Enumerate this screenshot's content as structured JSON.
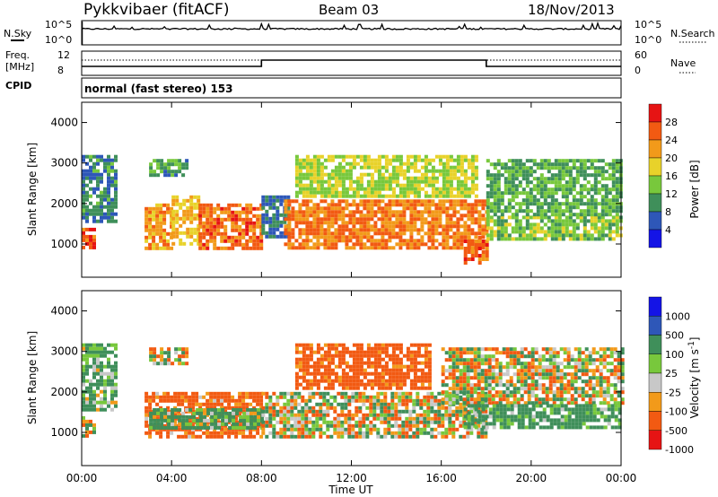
{
  "header": {
    "station": "Pykkvibaer (fitACF)",
    "beam": "Beam 03",
    "date": "18/Nov/2013"
  },
  "noise_panel": {
    "left_label": "N.Sky",
    "right_label": "N.Search",
    "left_ticks": [
      "10^5",
      "10^0"
    ],
    "right_ticks": [
      "10^5",
      "10^0"
    ]
  },
  "freq_panel": {
    "left_label_line1": "Freq.",
    "left_label_line2": "[MHz]",
    "left_ticks": [
      "12",
      "8"
    ],
    "right_label": "Nave",
    "right_ticks": [
      "60",
      "0"
    ],
    "freq_steps": [
      {
        "t_start": 0.0,
        "t_end": 3.0,
        "freq": 10.0
      },
      {
        "t_start": 3.0,
        "t_end": 8.0,
        "freq": 10.0
      },
      {
        "t_start": 8.0,
        "t_end": 18.0,
        "freq": 11.4
      },
      {
        "t_start": 18.0,
        "t_end": 24.0,
        "freq": 10.0
      }
    ]
  },
  "cpid": {
    "label": "CPID",
    "mode": "normal (fast stereo) 153"
  },
  "x_axis": {
    "title": "Time UT",
    "ticks": [
      "00:00",
      "04:00",
      "08:00",
      "12:00",
      "16:00",
      "20:00",
      "00:00"
    ],
    "range_hours": [
      0,
      24
    ]
  },
  "colors": {
    "power": [
      "#1414e6",
      "#2e57b8",
      "#3f8f5a",
      "#78c83c",
      "#e8d22a",
      "#f29a1a",
      "#f25a12",
      "#e61414"
    ],
    "velocity": [
      "#e61414",
      "#f25a12",
      "#f29a1a",
      "#c8c8c8",
      "#78c83c",
      "#3f8f5a",
      "#2e57b8",
      "#1414e6"
    ]
  },
  "chart_data": [
    {
      "type": "heatmap",
      "title": "Power",
      "ylabel": "Slant Range [km]",
      "ylim": [
        180,
        4500
      ],
      "y_ticks": [
        1000,
        2000,
        3000,
        4000
      ],
      "colorbar_label": "Power [dB]",
      "colorbar_ticks": [
        "4",
        "8",
        "12",
        "16",
        "20",
        "24",
        "28"
      ],
      "colorbar_range": [
        0,
        32
      ],
      "regions": [
        {
          "t0": 0.0,
          "t1": 0.6,
          "r0": 900,
          "r1": 1400,
          "value": 26
        },
        {
          "t0": 0.0,
          "t1": 1.5,
          "r0": 1600,
          "r1": 3200,
          "value": 9
        },
        {
          "t0": 2.8,
          "t1": 4.0,
          "r0": 900,
          "r1": 2000,
          "value": 22
        },
        {
          "t0": 4.0,
          "t1": 5.2,
          "r0": 1000,
          "r1": 2200,
          "value": 20
        },
        {
          "t0": 5.2,
          "t1": 8.0,
          "r0": 900,
          "r1": 2000,
          "value": 25
        },
        {
          "t0": 3.0,
          "t1": 4.6,
          "r0": 2700,
          "r1": 3100,
          "value": 10
        },
        {
          "t0": 8.0,
          "t1": 9.2,
          "r0": 1200,
          "r1": 2200,
          "value": 8
        },
        {
          "t0": 9.0,
          "t1": 18.0,
          "r0": 900,
          "r1": 2100,
          "value": 24
        },
        {
          "t0": 9.5,
          "t1": 17.5,
          "r0": 2200,
          "r1": 3200,
          "value": 16
        },
        {
          "t0": 17.0,
          "t1": 18.0,
          "r0": 500,
          "r1": 1200,
          "value": 26
        },
        {
          "t0": 18.0,
          "t1": 24.0,
          "r0": 1100,
          "r1": 1700,
          "value": 14
        },
        {
          "t0": 18.0,
          "t1": 24.0,
          "r0": 1700,
          "r1": 3100,
          "value": 12
        }
      ]
    },
    {
      "type": "heatmap",
      "title": "Velocity",
      "ylabel": "Slant Range [km]",
      "ylim": [
        180,
        4500
      ],
      "y_ticks": [
        1000,
        2000,
        3000,
        4000
      ],
      "colorbar_label": "Velocity [m s^-1]",
      "colorbar_ticks": [
        "1000",
        "500",
        "100",
        "25",
        "-25",
        "-100",
        "-500",
        "-1000"
      ],
      "colorbar_range": [
        -1000,
        1000
      ],
      "regions": [
        {
          "t0": 0.0,
          "t1": 0.6,
          "r0": 900,
          "r1": 1400,
          "value": 0
        },
        {
          "t0": 0.0,
          "t1": 1.5,
          "r0": 1600,
          "r1": 3200,
          "value": 150
        },
        {
          "t0": 2.8,
          "t1": 8.0,
          "r0": 900,
          "r1": 2000,
          "value": -200
        },
        {
          "t0": 3.0,
          "t1": 8.0,
          "r0": 1100,
          "r1": 1600,
          "value": 150
        },
        {
          "t0": 3.0,
          "t1": 4.6,
          "r0": 2700,
          "r1": 3100,
          "value": 0
        },
        {
          "t0": 8.0,
          "t1": 18.0,
          "r0": 900,
          "r1": 2000,
          "value": 0
        },
        {
          "t0": 9.5,
          "t1": 15.5,
          "r0": 2100,
          "r1": 3200,
          "value": -250
        },
        {
          "t0": 16.0,
          "t1": 24.0,
          "r0": 1700,
          "r1": 3100,
          "value": 0
        },
        {
          "t0": 17.0,
          "t1": 24.0,
          "r0": 1100,
          "r1": 1700,
          "value": 200
        }
      ]
    }
  ]
}
